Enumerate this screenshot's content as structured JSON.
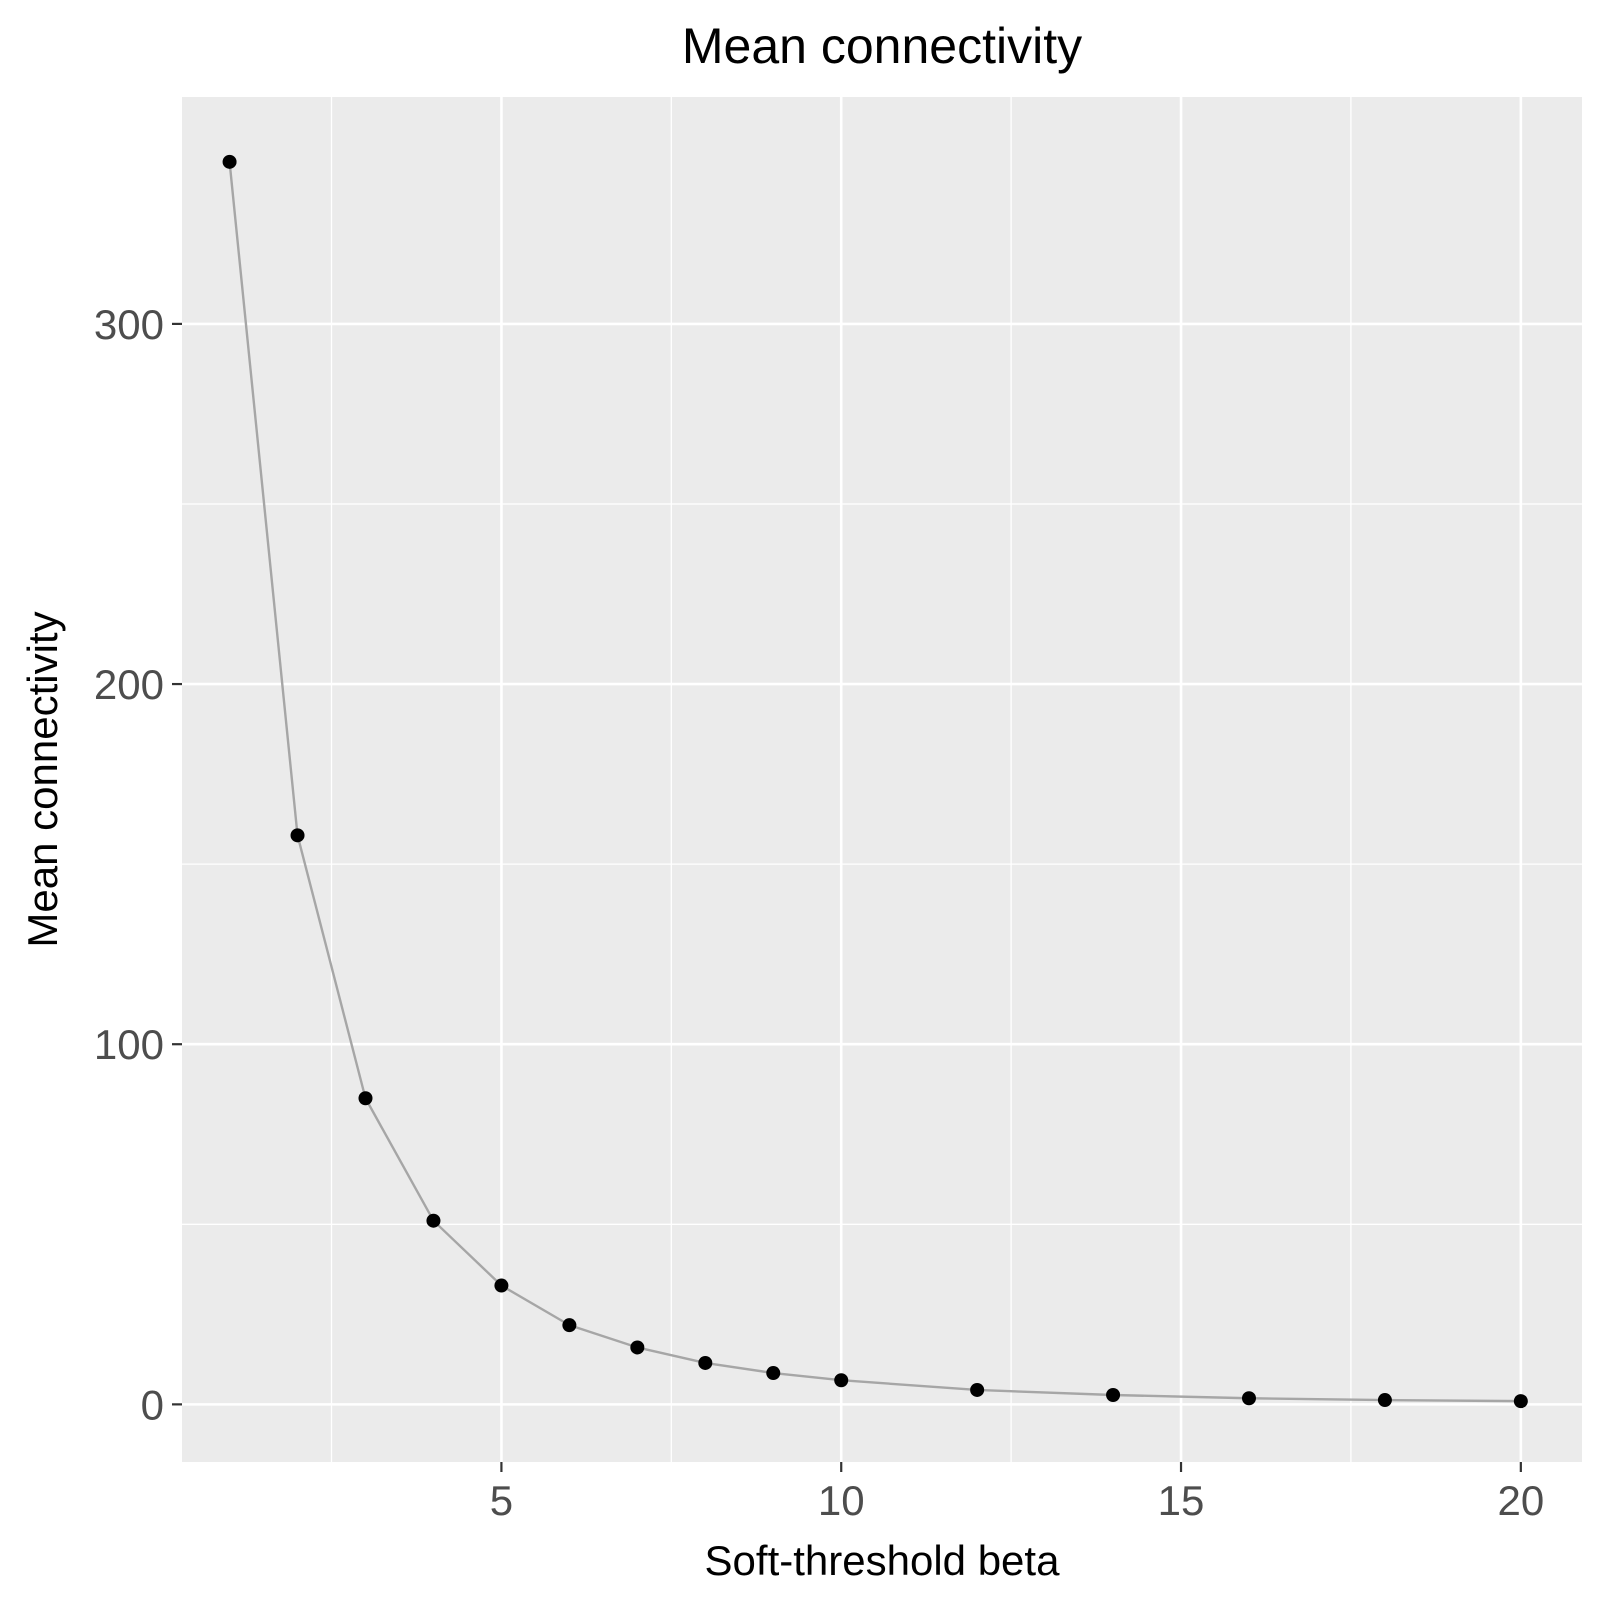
{
  "chart_data": {
    "type": "line",
    "title": "Mean connectivity",
    "xlabel": "Soft-threshold beta",
    "ylabel": "Mean connectivity",
    "x": [
      1,
      2,
      3,
      4,
      5,
      6,
      7,
      8,
      9,
      10,
      12,
      14,
      16,
      18,
      20
    ],
    "series": [
      {
        "values": [
          345,
          158,
          85,
          51,
          33,
          22,
          15.8,
          11.5,
          8.7,
          6.7,
          4,
          2.6,
          1.7,
          1.2,
          0.9
        ]
      }
    ],
    "xlim": [
      0.3,
      20.9
    ],
    "ylim": [
      -16,
      363
    ],
    "x_ticks": [
      5,
      10,
      15,
      20
    ],
    "x_ticks_minor": [
      2.5,
      7.5,
      12.5,
      17.5
    ],
    "y_ticks": [
      0,
      100,
      200,
      300
    ],
    "y_ticks_minor": [
      50,
      150,
      250
    ],
    "grid": true,
    "colors": {
      "panel_background": "#ebebeb",
      "grid": "#ffffff",
      "line": "#a6a6a6",
      "point": "#000000",
      "tick_label": "#4d4d4d",
      "tick_mark": "#333333"
    }
  }
}
